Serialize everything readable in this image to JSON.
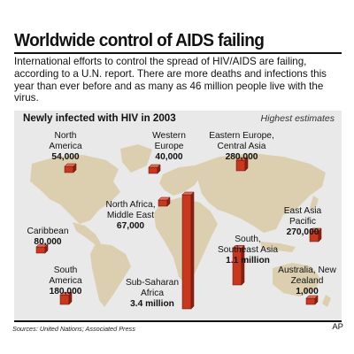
{
  "header": {
    "title": "Worldwide control of AIDS failing",
    "intro": "International efforts to control the spread of HIV/AIDS are failing, according to a U.N. report. There are more deaths and infections this year than ever before and as many as 46 million people live with the virus."
  },
  "map": {
    "subtitle": "Newly infected with HIV in 2003",
    "note": "Highest estimates",
    "regions": [
      {
        "name": "North America",
        "value": "54,000",
        "count": 54000
      },
      {
        "name": "Western Europe",
        "value": "40,000",
        "count": 40000
      },
      {
        "name": "Eastern Europe, Central Asia",
        "value": "280,000",
        "count": 280000
      },
      {
        "name": "North Africa, Middle East",
        "value": "67,000",
        "count": 67000
      },
      {
        "name": "Caribbean",
        "value": "80,000",
        "count": 80000
      },
      {
        "name": "East Asia Pacific",
        "value": "270,000",
        "count": 270000
      },
      {
        "name": "South, Southeast Asia",
        "value": "1.1 million",
        "count": 1100000
      },
      {
        "name": "South America",
        "value": "180,000",
        "count": 180000
      },
      {
        "name": "Sub-Saharan Africa",
        "value": "3.4 million",
        "count": 3400000
      },
      {
        "name": "Australia, New Zealand",
        "value": "1,000",
        "count": 1000
      }
    ],
    "colors": {
      "bar": "#c8381f",
      "bar_side": "#8e1f12",
      "bar_top": "#e7705b",
      "land": "#dccfb0",
      "water": "#e9e9e9"
    }
  },
  "footer": {
    "source": "Sources: United Nations; Associated Press",
    "credit": "AP"
  }
}
